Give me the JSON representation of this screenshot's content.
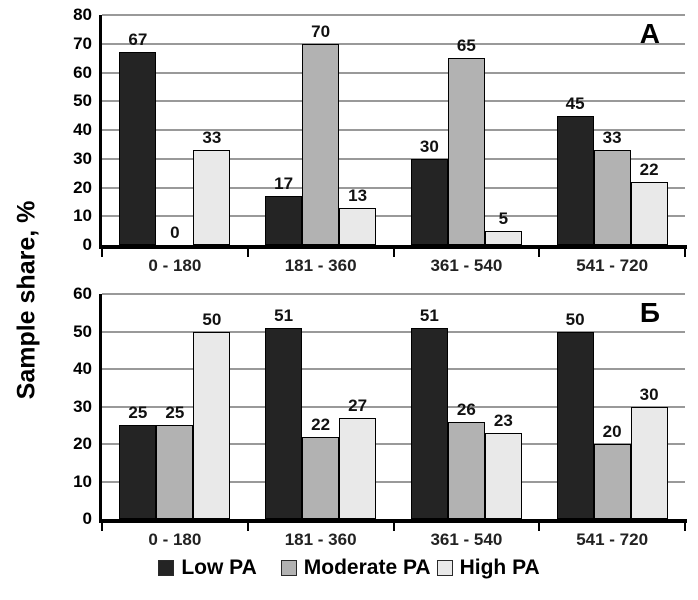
{
  "figure": {
    "y_axis_title": "Sample share, %"
  },
  "legend": {
    "items": [
      {
        "name": "low-pa",
        "label": "Low PA",
        "color": "#242424"
      },
      {
        "name": "moderate-pa",
        "label": "Moderate PA",
        "color": "#b2b2b2"
      },
      {
        "name": "high-pa",
        "label": "High PA",
        "color": "#e9e9e9"
      }
    ]
  },
  "colors": {
    "low_pa": "#242424",
    "moderate_pa": "#b2b2b2",
    "high_pa": "#e9e9e9",
    "gridline": "#999999",
    "axis": "#000000"
  },
  "chart_data": [
    {
      "type": "bar",
      "panel_label": "A",
      "title": "",
      "xlabel": "",
      "ylabel": "Sample share, %",
      "ylim": [
        0,
        80
      ],
      "ytick_step": 10,
      "grid": true,
      "legend_position": "bottom",
      "categories": [
        "0 - 180",
        "181 - 360",
        "361 - 540",
        "541 - 720"
      ],
      "series": [
        {
          "name": "Low PA",
          "values": [
            67,
            17,
            30,
            45
          ]
        },
        {
          "name": "Moderate PA",
          "values": [
            0,
            70,
            65,
            33
          ]
        },
        {
          "name": "High PA",
          "values": [
            33,
            13,
            5,
            22
          ]
        }
      ]
    },
    {
      "type": "bar",
      "panel_label": "Б",
      "title": "",
      "xlabel": "",
      "ylabel": "Sample share, %",
      "ylim": [
        0,
        60
      ],
      "ytick_step": 10,
      "grid": true,
      "legend_position": "bottom",
      "categories": [
        "0 - 180",
        "181 - 360",
        "361 - 540",
        "541 - 720"
      ],
      "series": [
        {
          "name": "Low PA",
          "values": [
            25,
            51,
            51,
            50
          ]
        },
        {
          "name": "Moderate PA",
          "values": [
            25,
            22,
            26,
            20
          ]
        },
        {
          "name": "High PA",
          "values": [
            50,
            27,
            23,
            30
          ]
        }
      ]
    }
  ]
}
